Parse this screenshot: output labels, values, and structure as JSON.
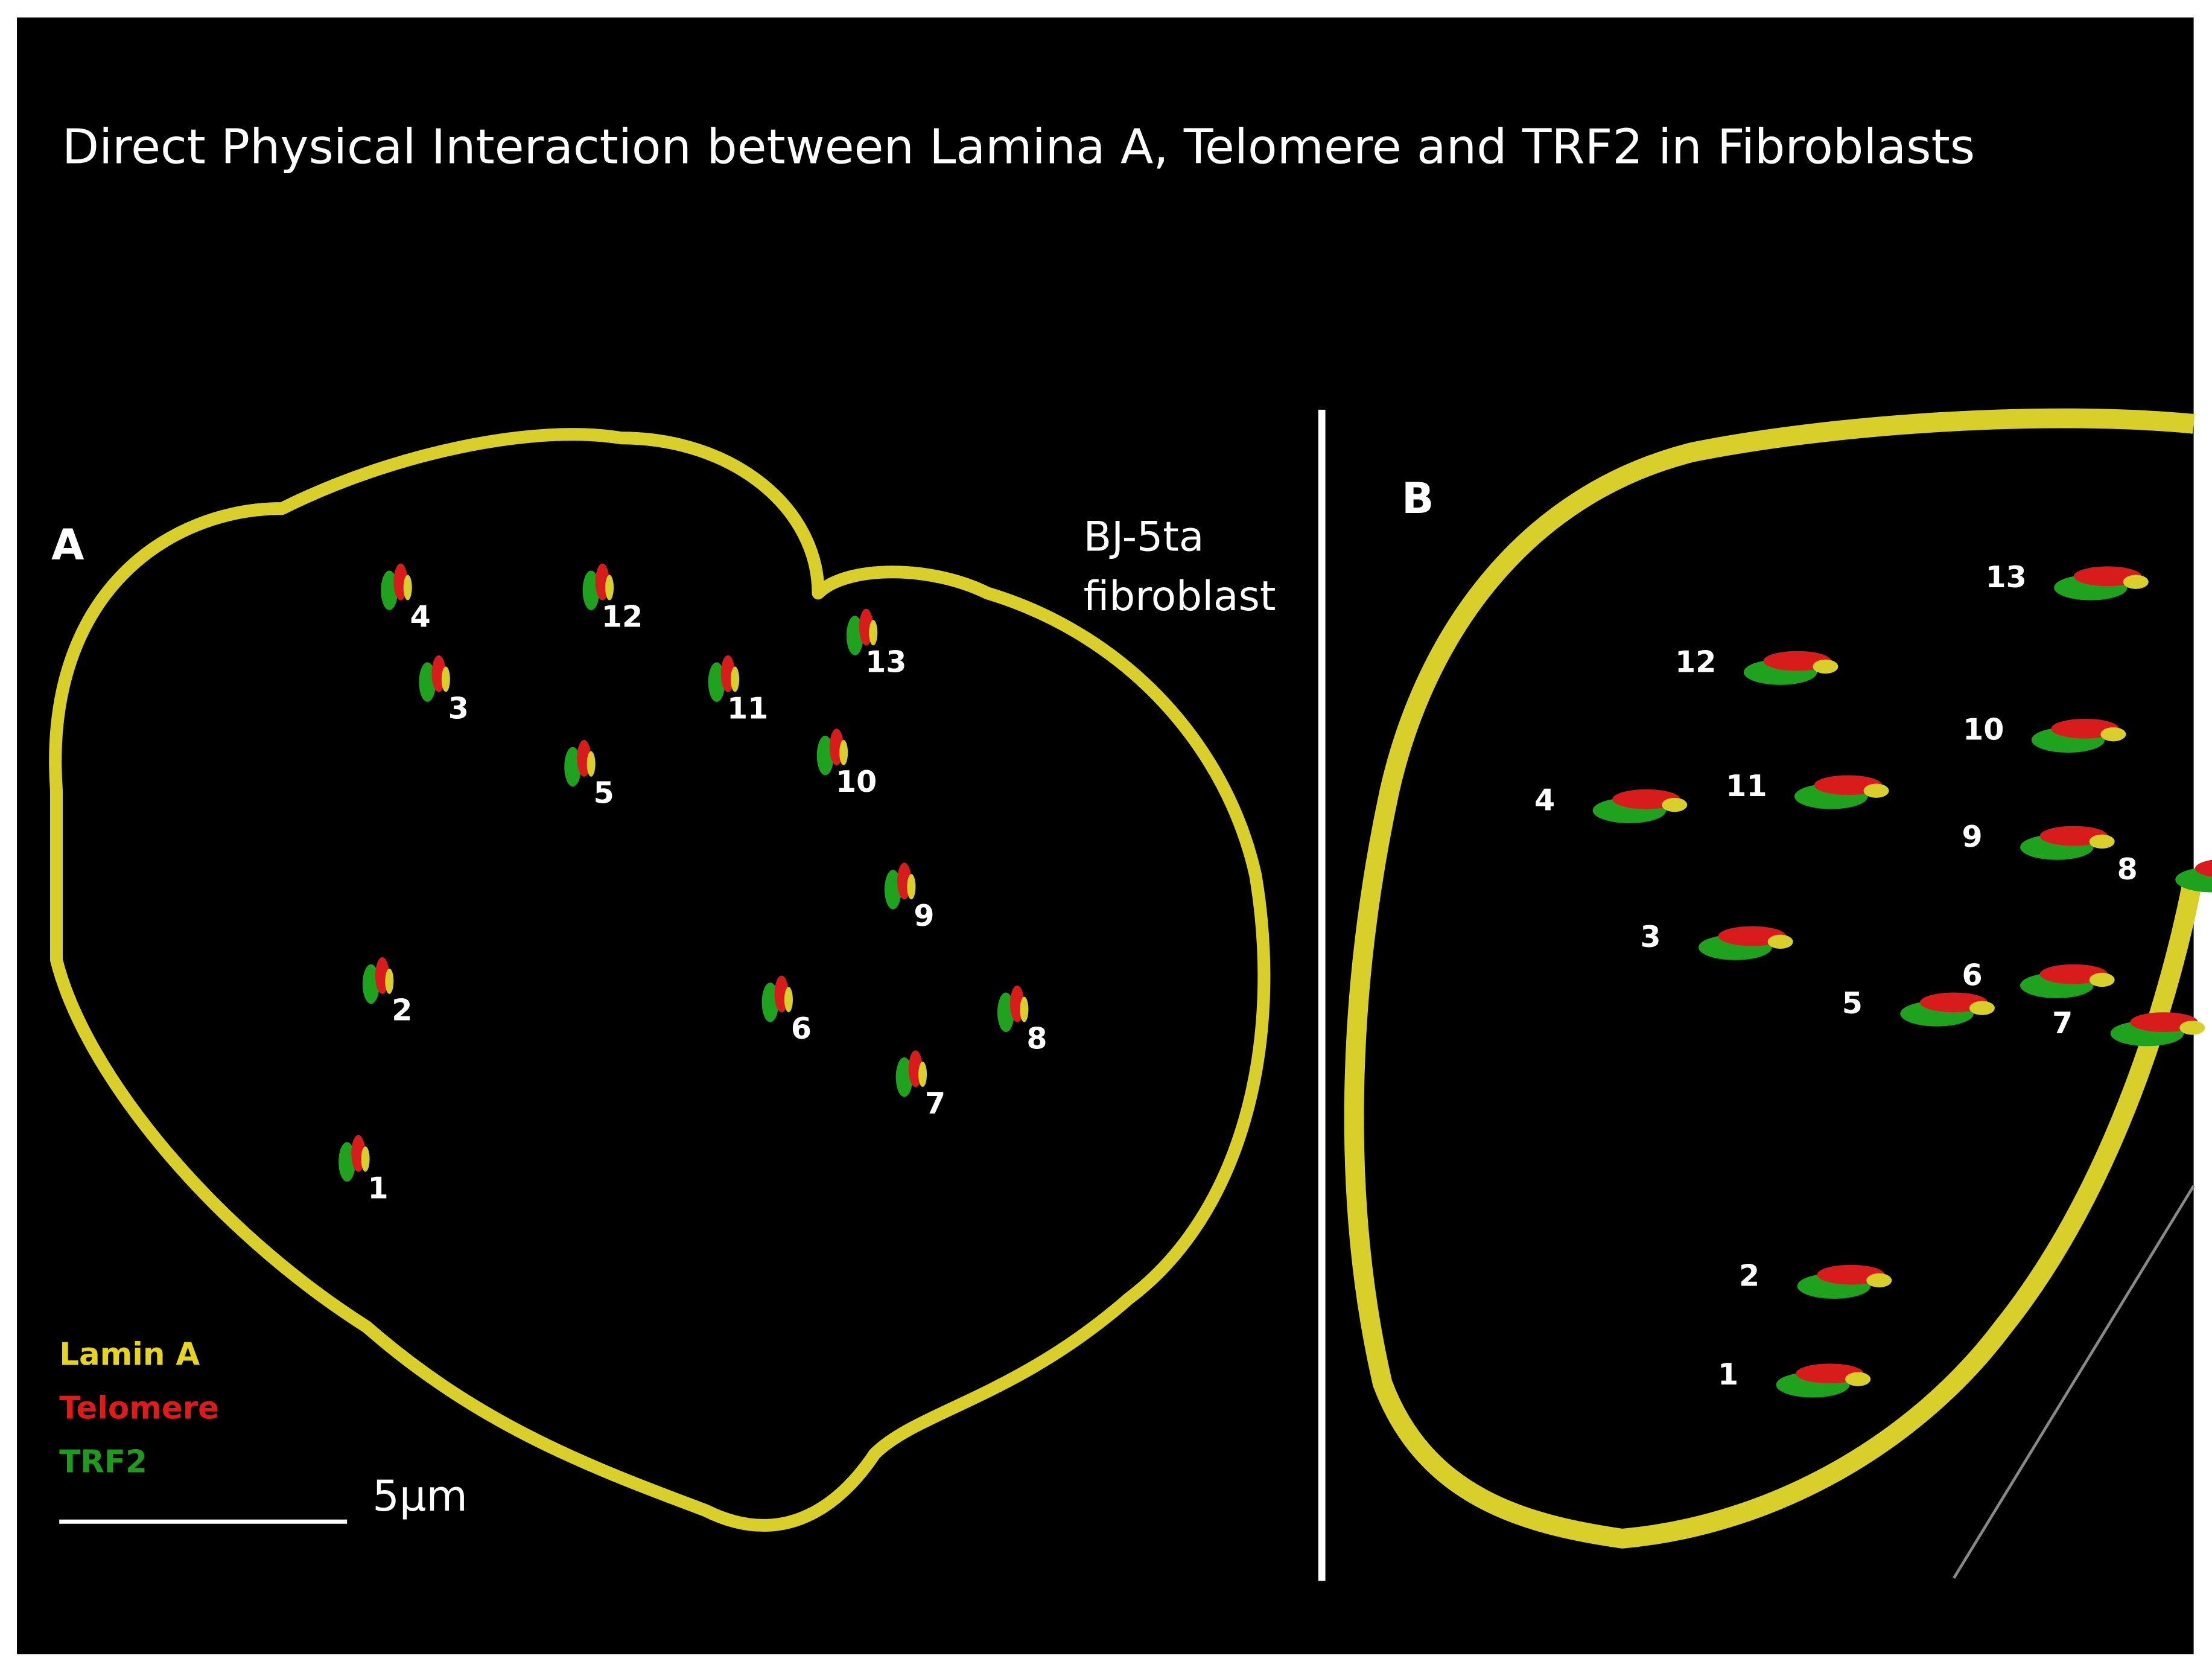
{
  "header": {
    "title": "Direct Physical Interaction between Lamina A,  Telomere  and TRF2 in Fibroblasts"
  },
  "panel_a": {
    "label": "A",
    "cell_label": [
      "BJ-5ta",
      "fibroblast"
    ],
    "markers": [
      "1",
      "2",
      "3",
      "4",
      "5",
      "6",
      "7",
      "8",
      "9",
      "10",
      "11",
      "12",
      "13"
    ]
  },
  "panel_b": {
    "label": "B",
    "markers": [
      "1",
      "2",
      "3",
      "4",
      "5",
      "6",
      "7",
      "8",
      "9",
      "10",
      "11",
      "12",
      "13"
    ]
  },
  "legend": [
    "Lamin A",
    "Telomere",
    "TRF2"
  ],
  "scale_bar": {
    "label": "5μm"
  }
}
